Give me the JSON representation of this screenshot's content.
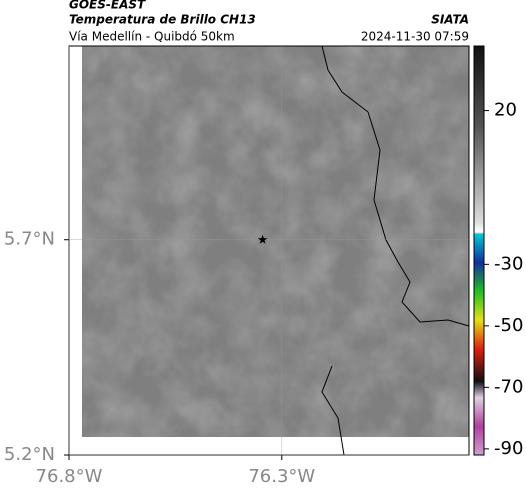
{
  "header": {
    "satellite": "GOES-EAST",
    "product": "Temperatura de Brillo CH13",
    "source": "SIATA",
    "region": "Vía Medellín - Quibdó 50km",
    "datetime": "2024-11-30 07:59"
  },
  "map": {
    "xlim": [
      -76.8,
      -75.86
    ],
    "ylim": [
      5.2,
      6.15
    ],
    "xticks": [
      {
        "value": -76.8,
        "label": "76.8°W"
      },
      {
        "value": -76.3,
        "label": "76.3°W"
      }
    ],
    "yticks": [
      {
        "value": 5.2,
        "label": "5.2°N"
      },
      {
        "value": 5.7,
        "label": "5.7°N"
      }
    ],
    "marker": {
      "lon": -76.345,
      "lat": 5.7
    }
  },
  "colorbar": {
    "lim": [
      -92,
      41
    ],
    "ticks": [
      20,
      -30,
      -50,
      -70,
      -90
    ]
  }
}
